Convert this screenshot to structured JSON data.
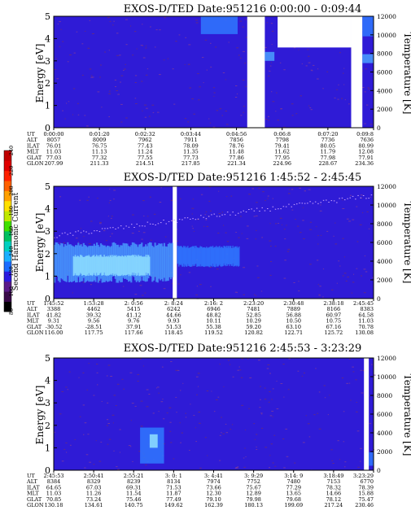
{
  "colors": {
    "background": "#2f1bd6",
    "noise": "#6a2b7a",
    "bright": "#2d6cf0",
    "flux_low": "#2742e6",
    "flux_mid": "#2f78ff",
    "flux_high": "#4aa0ff",
    "flux_peak": "#8fe0ff",
    "gap": "#ffffff"
  },
  "colorbar": {
    "label": "Second Harmonic Current",
    "ticks": [
      "80",
      "100",
      "120",
      "140",
      "160",
      "180",
      "200",
      "220",
      "240"
    ],
    "colors": [
      "#000000",
      "#3a0a4a",
      "#5a1a8a",
      "#2a1ae0",
      "#1a6cff",
      "#1ab0ff",
      "#00d0c0",
      "#00c060",
      "#40e000",
      "#c0e800",
      "#ffe000",
      "#ffa000",
      "#ff6000",
      "#ff2000",
      "#e00000",
      "#c00000"
    ]
  },
  "chart_data": [
    {
      "type": "heatmap",
      "title": "EXOS-D/TED   Date:951216  0:00:00 - 0:09:44",
      "ylabel": "Energy [eV]",
      "ylim": [
        0,
        5
      ],
      "yticks": [
        "0",
        "1",
        "2",
        "3",
        "4",
        "5"
      ],
      "y2label": "Temperature [K]",
      "y2lim": [
        0,
        12000
      ],
      "y2ticks": [
        "0",
        "2000",
        "4000",
        "6000",
        "8000",
        "10000",
        "12000"
      ],
      "table": {
        "labels": [
          "UT",
          "ALT",
          "ILAT",
          "MLT",
          "GLAT",
          "GLON"
        ],
        "columns": [
          [
            "0:00:00",
            "8057",
            "76.01",
            "11.03",
            "77.03",
            "207.99"
          ],
          [
            "0:01:20",
            "8009",
            "76.75",
            "11.13",
            "77.32",
            "211.33"
          ],
          [
            "0:02:32",
            "7962",
            "77.43",
            "11.24",
            "77.55",
            "214.51"
          ],
          [
            "0:03:44",
            "7911",
            "78.09",
            "11.35",
            "77.73",
            "217.85"
          ],
          [
            "0:04:56",
            "7856",
            "78.76",
            "11.48",
            "77.86",
            "221.34"
          ],
          [
            "0:06:8",
            "7798",
            "79.41",
            "11.62",
            "77.95",
            "224.96"
          ],
          [
            "0:07:20",
            "7736",
            "80.05",
            "11.79",
            "77.98",
            "228.67"
          ],
          [
            "0:09:8",
            "7636",
            "80.99",
            "12.08",
            "77.91",
            "234.36"
          ]
        ]
      },
      "features": [
        {
          "kind": "gap",
          "x": [
            0.605,
            0.66
          ],
          "y": [
            0,
            5
          ]
        },
        {
          "kind": "gap",
          "x": [
            0.7,
            0.93
          ],
          "y": [
            3.6,
            5
          ]
        },
        {
          "kind": "gap",
          "x": [
            0.93,
            0.965
          ],
          "y": [
            0,
            5
          ]
        },
        {
          "kind": "patch",
          "x": [
            0.46,
            0.575
          ],
          "y": [
            4.2,
            5
          ],
          "level": "flux_mid"
        },
        {
          "kind": "patch",
          "x": [
            0.66,
            0.69
          ],
          "y": [
            3.0,
            3.4
          ],
          "level": "flux_high"
        },
        {
          "kind": "patch",
          "x": [
            0.965,
            1.0
          ],
          "y": [
            2.9,
            3.3
          ],
          "level": "flux_high"
        },
        {
          "kind": "patch",
          "x": [
            0.965,
            1.0
          ],
          "y": [
            4.1,
            5
          ],
          "level": "flux_mid"
        }
      ]
    },
    {
      "type": "heatmap",
      "title": "EXOS-D/TED   Date:951216  1:45:52 - 2:45:45",
      "ylabel": "Energy [eV]",
      "ylim": [
        0,
        5
      ],
      "yticks": [
        "0",
        "1",
        "2",
        "3",
        "4",
        "5"
      ],
      "y2label": "Temperature [K]",
      "y2lim": [
        0,
        12000
      ],
      "y2ticks": [
        "0",
        "2000",
        "4000",
        "6000",
        "8000",
        "10000",
        "12000"
      ],
      "table": {
        "labels": [
          "UT",
          "ALT",
          "ILAT",
          "MLT",
          "GLAT",
          "GLON"
        ],
        "columns": [
          [
            "1:45:52",
            "3388",
            "41.82",
            "9.31",
            "-30.52",
            "116.00"
          ],
          [
            "1:53:28",
            "4462",
            "39.32",
            "9.56",
            "-28.51",
            "117.75"
          ],
          [
            "2: 0:56",
            "5415",
            "41.12",
            "9.76",
            "37.91",
            "117.66"
          ],
          [
            "2: 8:24",
            "6242",
            "44.66",
            "9.93",
            "51.53",
            "118.45"
          ],
          [
            "2:16: 2",
            "6946",
            "48.82",
            "10.11",
            "55.38",
            "119.52"
          ],
          [
            "2:23:20",
            "7481",
            "52.85",
            "10.29",
            "59.20",
            "120.82"
          ],
          [
            "2:30:48",
            "7889",
            "56.88",
            "10.50",
            "63.10",
            "122.71"
          ],
          [
            "2:38:18",
            "8166",
            "60.97",
            "10.75",
            "67.16",
            "125.72"
          ],
          [
            "2:45:45",
            "8383",
            "64.58",
            "11.03",
            "70.78",
            "130.08"
          ]
        ]
      },
      "features": [
        {
          "kind": "gap",
          "x": [
            0.372,
            0.385
          ],
          "y": [
            0,
            5
          ]
        },
        {
          "kind": "band",
          "x": [
            0.0,
            0.372
          ],
          "y": [
            0.7,
            2.4
          ],
          "level": "flux_high"
        },
        {
          "kind": "band",
          "x": [
            0.06,
            0.3
          ],
          "y": [
            1.0,
            1.9
          ],
          "level": "flux_peak"
        },
        {
          "kind": "band",
          "x": [
            0.385,
            0.58
          ],
          "y": [
            1.4,
            2.3
          ],
          "level": "flux_mid"
        }
      ]
    },
    {
      "type": "heatmap",
      "title": "EXOS-D/TED   Date:951216  2:45:53 - 3:23:29",
      "ylabel": "Energy [eV]",
      "ylim": [
        0,
        5
      ],
      "yticks": [
        "0",
        "1",
        "2",
        "3",
        "4",
        "5"
      ],
      "y2label": "Temperature [K]",
      "y2lim": [
        0,
        12000
      ],
      "y2ticks": [
        "0",
        "2000",
        "4000",
        "6000",
        "8000",
        "10000",
        "12000"
      ],
      "table": {
        "labels": [
          "UT",
          "ALT",
          "ILAT",
          "MLT",
          "GLAT",
          "GLON"
        ],
        "columns": [
          [
            "2:45:53",
            "8384",
            "64.65",
            "11.03",
            "70.85",
            "130.18"
          ],
          [
            "2:50:41",
            "8329",
            "67.03",
            "11.26",
            "73.24",
            "134.61"
          ],
          [
            "2:55:21",
            "8239",
            "69.31",
            "11.54",
            "75.46",
            "140.75"
          ],
          [
            "3: 0: 1",
            "8134",
            "71.53",
            "11.87",
            "77.49",
            "149.62"
          ],
          [
            "3: 4:41",
            "7974",
            "73.66",
            "12.30",
            "79.10",
            "162.39"
          ],
          [
            "3: 9:29",
            "7752",
            "75.67",
            "12.89",
            "79.98",
            "180.13"
          ],
          [
            "3:14: 9",
            "7480",
            "77.29",
            "13.65",
            "79.68",
            "199.69"
          ],
          [
            "3:18:49",
            "7153",
            "78.32",
            "14.66",
            "78.12",
            "217.24"
          ],
          [
            "3:23:29",
            "6770",
            "78.39",
            "15.88",
            "75.47",
            "230.46"
          ]
        ]
      },
      "features": [
        {
          "kind": "gap",
          "x": [
            0.97,
            0.985
          ],
          "y": [
            0,
            5
          ]
        },
        {
          "kind": "patch",
          "x": [
            0.27,
            0.345
          ],
          "y": [
            0.3,
            1.9
          ],
          "level": "flux_mid"
        },
        {
          "kind": "patch",
          "x": [
            0.3,
            0.325
          ],
          "y": [
            1.0,
            1.6
          ],
          "level": "flux_peak"
        },
        {
          "kind": "patch",
          "x": [
            0.985,
            1.0
          ],
          "y": [
            0.2,
            0.8
          ],
          "level": "flux_mid"
        }
      ]
    }
  ]
}
